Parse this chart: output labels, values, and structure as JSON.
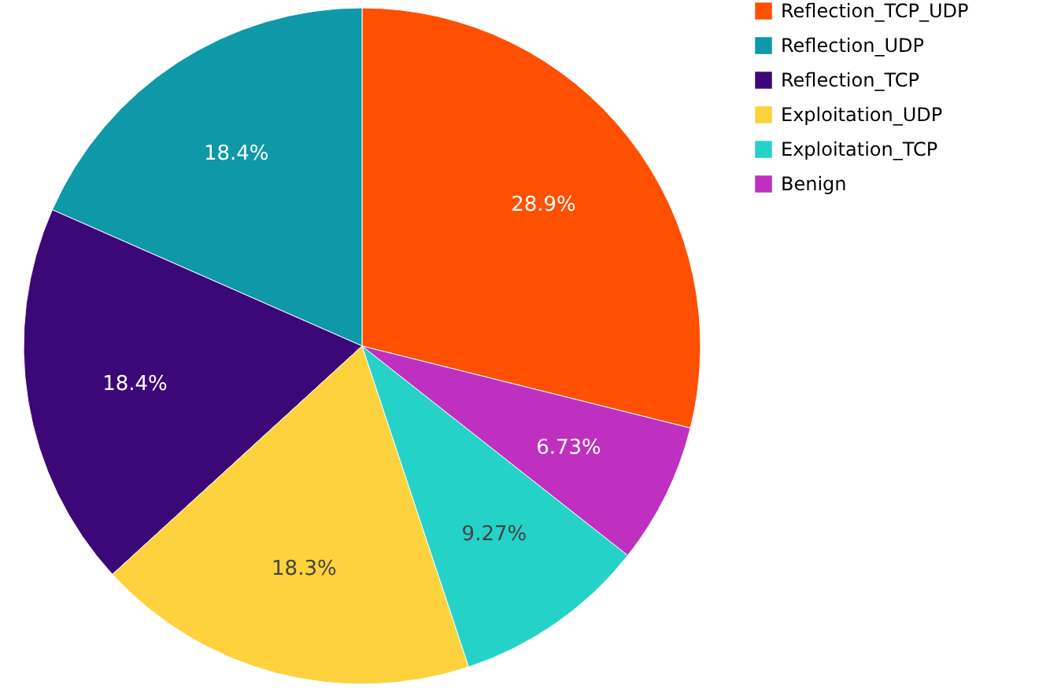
{
  "chart_data": {
    "type": "pie",
    "categories": [
      "Reflection_TCP_UDP",
      "Reflection_UDP",
      "Reflection_TCP",
      "Exploitation_UDP",
      "Exploitation_TCP",
      "Benign"
    ],
    "values": [
      28.9,
      18.4,
      18.4,
      18.3,
      9.27,
      6.73
    ],
    "value_labels": [
      "28.9%",
      "18.4%",
      "18.4%",
      "18.3%",
      "9.27%",
      "6.73%"
    ],
    "colors": [
      "#fe5000",
      "#0e98a8",
      "#3c0878",
      "#fdd23c",
      "#24d2c8",
      "#c030c0"
    ],
    "legend": "top right"
  }
}
